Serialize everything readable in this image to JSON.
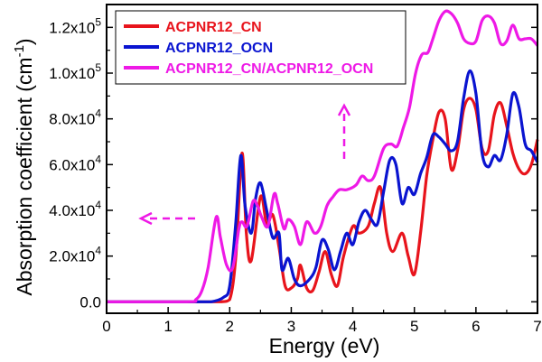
{
  "chart_data": {
    "type": "line",
    "xlabel": "Energy (eV)",
    "ylabel_main": "Absorption coefficient (cm",
    "ylabel_sup": "-1",
    "ylabel_close": ")",
    "xlim": [
      0,
      7
    ],
    "ylim": [
      -5000,
      130000
    ],
    "x_ticks": [
      0,
      1,
      2,
      3,
      4,
      5,
      6,
      7
    ],
    "x_tick_labels": [
      "0",
      "1",
      "2",
      "3",
      "4",
      "5",
      "6",
      "7"
    ],
    "y_ticks": [
      {
        "value": 0,
        "main": "0.0",
        "sup": ""
      },
      {
        "value": 20000,
        "main": "2.0x10",
        "sup": "4"
      },
      {
        "value": 40000,
        "main": "4.0x10",
        "sup": "4"
      },
      {
        "value": 60000,
        "main": "6.0x10",
        "sup": "4"
      },
      {
        "value": 80000,
        "main": "8.0x10",
        "sup": "4"
      },
      {
        "value": 100000,
        "main": "1.0x10",
        "sup": "5"
      },
      {
        "value": 120000,
        "main": "1.2x10",
        "sup": "5"
      }
    ],
    "legend_position": "top-left",
    "series": [
      {
        "name": "ACPNR12_CN",
        "color": "#e8141c",
        "points": [
          [
            0,
            0
          ],
          [
            1.5,
            0
          ],
          [
            1.85,
            0
          ],
          [
            2.0,
            1000
          ],
          [
            2.1,
            20000
          ],
          [
            2.2,
            65000
          ],
          [
            2.27,
            30000
          ],
          [
            2.35,
            18000
          ],
          [
            2.5,
            46000
          ],
          [
            2.6,
            34000
          ],
          [
            2.7,
            38000
          ],
          [
            2.8,
            24000
          ],
          [
            2.9,
            7000
          ],
          [
            3.0,
            6000
          ],
          [
            3.1,
            10000
          ],
          [
            3.15,
            16000
          ],
          [
            3.25,
            6000
          ],
          [
            3.35,
            5000
          ],
          [
            3.45,
            13000
          ],
          [
            3.55,
            22000
          ],
          [
            3.65,
            12000
          ],
          [
            3.75,
            7000
          ],
          [
            3.85,
            20000
          ],
          [
            4.0,
            33000
          ],
          [
            4.1,
            30000
          ],
          [
            4.25,
            33000
          ],
          [
            4.35,
            43000
          ],
          [
            4.45,
            50000
          ],
          [
            4.55,
            30000
          ],
          [
            4.65,
            22000
          ],
          [
            4.8,
            30000
          ],
          [
            4.9,
            20000
          ],
          [
            5.0,
            12000
          ],
          [
            5.1,
            30000
          ],
          [
            5.2,
            55000
          ],
          [
            5.3,
            71000
          ],
          [
            5.4,
            83000
          ],
          [
            5.5,
            80000
          ],
          [
            5.6,
            58000
          ],
          [
            5.7,
            66000
          ],
          [
            5.8,
            84000
          ],
          [
            5.9,
            89000
          ],
          [
            6.0,
            84000
          ],
          [
            6.1,
            67000
          ],
          [
            6.2,
            66000
          ],
          [
            6.3,
            82000
          ],
          [
            6.4,
            87000
          ],
          [
            6.5,
            77000
          ],
          [
            6.6,
            65000
          ],
          [
            6.7,
            58000
          ],
          [
            6.8,
            56000
          ],
          [
            6.9,
            60000
          ],
          [
            7.0,
            71000
          ]
        ]
      },
      {
        "name": "ACPNR12_OCN",
        "color": "#0a14d0",
        "points": [
          [
            0,
            0
          ],
          [
            1.5,
            0
          ],
          [
            1.7,
            0
          ],
          [
            1.9,
            2000
          ],
          [
            2.0,
            7000
          ],
          [
            2.1,
            35000
          ],
          [
            2.18,
            64000
          ],
          [
            2.25,
            42000
          ],
          [
            2.35,
            30000
          ],
          [
            2.42,
            45000
          ],
          [
            2.5,
            52000
          ],
          [
            2.6,
            40000
          ],
          [
            2.7,
            28000
          ],
          [
            2.8,
            30000
          ],
          [
            2.85,
            14000
          ],
          [
            2.95,
            19000
          ],
          [
            3.05,
            10000
          ],
          [
            3.15,
            7000
          ],
          [
            3.3,
            10000
          ],
          [
            3.4,
            15000
          ],
          [
            3.5,
            27000
          ],
          [
            3.6,
            23000
          ],
          [
            3.7,
            14000
          ],
          [
            3.8,
            22000
          ],
          [
            3.9,
            30000
          ],
          [
            4.0,
            25000
          ],
          [
            4.1,
            35000
          ],
          [
            4.2,
            40000
          ],
          [
            4.3,
            36000
          ],
          [
            4.4,
            34000
          ],
          [
            4.5,
            48000
          ],
          [
            4.6,
            62000
          ],
          [
            4.7,
            60000
          ],
          [
            4.8,
            43000
          ],
          [
            4.9,
            50000
          ],
          [
            5.0,
            47000
          ],
          [
            5.1,
            56000
          ],
          [
            5.2,
            63000
          ],
          [
            5.3,
            73000
          ],
          [
            5.4,
            72000
          ],
          [
            5.5,
            69000
          ],
          [
            5.6,
            66000
          ],
          [
            5.7,
            70000
          ],
          [
            5.8,
            89000
          ],
          [
            5.9,
            101000
          ],
          [
            6.0,
            91000
          ],
          [
            6.1,
            65000
          ],
          [
            6.2,
            59000
          ],
          [
            6.3,
            64000
          ],
          [
            6.4,
            62000
          ],
          [
            6.5,
            73000
          ],
          [
            6.6,
            91000
          ],
          [
            6.7,
            85000
          ],
          [
            6.8,
            69000
          ],
          [
            6.9,
            66000
          ],
          [
            7.0,
            61000
          ]
        ]
      },
      {
        "name": "ACPNR12_CN/ACPNR12_OCN",
        "color": "#ee19e6",
        "points": [
          [
            0,
            0
          ],
          [
            1.3,
            0
          ],
          [
            1.45,
            1000
          ],
          [
            1.55,
            5000
          ],
          [
            1.65,
            15000
          ],
          [
            1.78,
            37000
          ],
          [
            1.85,
            28000
          ],
          [
            1.95,
            16000
          ],
          [
            2.05,
            15000
          ],
          [
            2.15,
            32000
          ],
          [
            2.2,
            35000
          ],
          [
            2.28,
            33000
          ],
          [
            2.38,
            44000
          ],
          [
            2.45,
            42000
          ],
          [
            2.52,
            37000
          ],
          [
            2.62,
            33000
          ],
          [
            2.72,
            47000
          ],
          [
            2.78,
            43000
          ],
          [
            2.88,
            32000
          ],
          [
            2.95,
            36000
          ],
          [
            3.05,
            33000
          ],
          [
            3.15,
            25000
          ],
          [
            3.25,
            35000
          ],
          [
            3.38,
            30000
          ],
          [
            3.48,
            33000
          ],
          [
            3.58,
            42000
          ],
          [
            3.68,
            46000
          ],
          [
            3.78,
            49000
          ],
          [
            3.9,
            49000
          ],
          [
            4.05,
            51000
          ],
          [
            4.15,
            55000
          ],
          [
            4.25,
            53000
          ],
          [
            4.35,
            55000
          ],
          [
            4.5,
            67000
          ],
          [
            4.62,
            69000
          ],
          [
            4.72,
            68000
          ],
          [
            4.82,
            76000
          ],
          [
            4.92,
            85000
          ],
          [
            5.02,
            100000
          ],
          [
            5.12,
            108000
          ],
          [
            5.22,
            109000
          ],
          [
            5.3,
            115000
          ],
          [
            5.4,
            123000
          ],
          [
            5.5,
            127000
          ],
          [
            5.6,
            126000
          ],
          [
            5.7,
            122000
          ],
          [
            5.8,
            115000
          ],
          [
            5.9,
            113000
          ],
          [
            6.0,
            114000
          ],
          [
            6.1,
            123000
          ],
          [
            6.2,
            125000
          ],
          [
            6.3,
            122000
          ],
          [
            6.4,
            113000
          ],
          [
            6.5,
            114000
          ],
          [
            6.6,
            121000
          ],
          [
            6.7,
            115000
          ],
          [
            6.8,
            115000
          ],
          [
            6.9,
            115000
          ],
          [
            7.0,
            112000
          ]
        ]
      }
    ],
    "annotations": [
      {
        "type": "dashed-arrow",
        "direction": "left",
        "color": "#ee19e6",
        "meaning": "left axis"
      },
      {
        "type": "dashed-arrow",
        "direction": "up",
        "color": "#ee19e6",
        "meaning": "right axis"
      }
    ]
  }
}
